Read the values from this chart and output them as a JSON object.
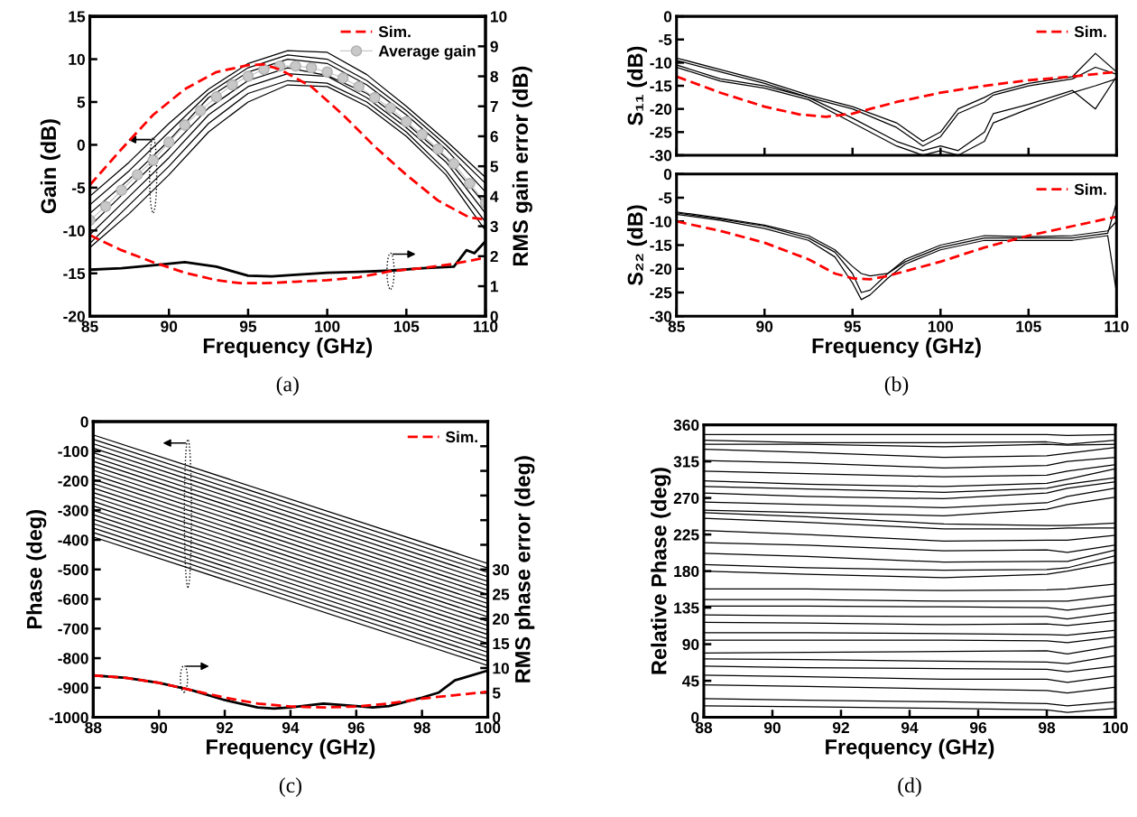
{
  "chart_data": [
    {
      "type": "line",
      "xlabel": "Frequency (GHz)",
      "ylabel": "Gain (dB)",
      "y2label": "RMS gain error (dB)",
      "annotations": [
        "(a)"
      ],
      "xlim": [
        85,
        110
      ],
      "xticks": [
        85,
        90,
        95,
        100,
        105,
        110
      ],
      "ylim": [
        -20,
        15
      ],
      "yticks": [
        -20,
        -15,
        -10,
        -5,
        0,
        5,
        10,
        15
      ],
      "y2lim": [
        0,
        10
      ],
      "y2ticks": [
        0,
        1,
        2,
        3,
        4,
        5,
        6,
        7,
        8,
        9,
        10
      ],
      "legend": "top right",
      "x": [
        85,
        87.5,
        90,
        92.5,
        95,
        97.5,
        100,
        102.5,
        105,
        107.5,
        110
      ],
      "series": [
        {
          "color": "#000000",
          "values": [
            -6,
            -2,
            2.5,
            6.5,
            9.5,
            11,
            10.8,
            8.2,
            4.5,
            0.5,
            -3.8
          ]
        },
        {
          "color": "#000000",
          "values": [
            -7,
            -3,
            1.5,
            6,
            9,
            10.5,
            10,
            7.5,
            4,
            0,
            -4.5
          ]
        },
        {
          "color": "#000000",
          "values": [
            -8,
            -4,
            0.5,
            5.5,
            8.5,
            10,
            9.5,
            7,
            3.5,
            -0.5,
            -5.5
          ]
        },
        {
          "color": "#000000",
          "values": [
            -9.5,
            -5,
            -0.5,
            4.3,
            7.5,
            9,
            8.1,
            6,
            2.5,
            -1.5,
            -7
          ]
        },
        {
          "color": "#000000",
          "values": [
            -10.5,
            -6,
            -1.5,
            3.5,
            6.8,
            8.3,
            8,
            5.5,
            2,
            -2,
            -8
          ]
        },
        {
          "color": "#000000",
          "values": [
            -11.5,
            -7,
            -2.5,
            2.5,
            6,
            7.5,
            7.2,
            5,
            1.5,
            -3,
            -9
          ]
        },
        {
          "color": "#000000",
          "values": [
            -12,
            -8,
            -3.5,
            1.5,
            5,
            7,
            6.8,
            4.5,
            1,
            -3.5,
            -10
          ]
        },
        {
          "name": "Average gain",
          "color": "#c8c8c8",
          "marker": "circle",
          "x": [
            85,
            86,
            87,
            88,
            89,
            90,
            91,
            92,
            93,
            94,
            95,
            96,
            97,
            98,
            99,
            100,
            101,
            102,
            103,
            104,
            105,
            106,
            107,
            108,
            109,
            110
          ],
          "values": [
            -8.8,
            -7.2,
            -5.3,
            -3.5,
            -1.8,
            0.3,
            2.3,
            4,
            5.6,
            7,
            8,
            8.8,
            9.2,
            9.2,
            9,
            8.5,
            7.8,
            6.8,
            5.5,
            4.3,
            2.7,
            1.2,
            -0.5,
            -2.2,
            -4.5,
            -6.8
          ]
        },
        {
          "name": "Sim.",
          "color": "#ff0000",
          "line_style": "dashed",
          "x": [
            85,
            87,
            89,
            91,
            93,
            95,
            96,
            97,
            99,
            101,
            103,
            105,
            107,
            108,
            109,
            110
          ],
          "values": [
            -4.7,
            -0.5,
            3.5,
            6.5,
            8.5,
            9.3,
            9.4,
            8.8,
            6.8,
            3.5,
            -0.2,
            -3.5,
            -6.5,
            -7.5,
            -8.5,
            -8.7
          ]
        },
        {
          "color": "#000000",
          "axis": "y2",
          "x": [
            85,
            87,
            89,
            91,
            93,
            95,
            96.5,
            98,
            100,
            102,
            104,
            106,
            108,
            108.8,
            109.3,
            110
          ],
          "values": [
            1.55,
            1.6,
            1.7,
            1.8,
            1.65,
            1.35,
            1.33,
            1.38,
            1.45,
            1.48,
            1.52,
            1.6,
            1.65,
            2.2,
            2.1,
            2.5
          ]
        },
        {
          "color": "#ff0000",
          "line_style": "dashed",
          "axis": "y2",
          "x": [
            85,
            87,
            89,
            91,
            93,
            94.5,
            96,
            98,
            100,
            102,
            104,
            106,
            108,
            110
          ],
          "values": [
            2.7,
            2.2,
            1.8,
            1.45,
            1.2,
            1.1,
            1.1,
            1.15,
            1.2,
            1.3,
            1.5,
            1.6,
            1.75,
            1.95
          ]
        }
      ]
    },
    {
      "type": "line",
      "ylabel": "S₁₁ (dB)",
      "xlim": [
        85,
        110
      ],
      "xticks": [
        85,
        90,
        95,
        100,
        105,
        110
      ],
      "ylim": [
        -30,
        0
      ],
      "yticks": [
        -30,
        -25,
        -20,
        -15,
        -10,
        -5,
        0
      ],
      "tick_labels": "y",
      "legend": "top right",
      "x": [
        85,
        87.5,
        90,
        92.5,
        95,
        97.5,
        99,
        100,
        101,
        102.5,
        103,
        105,
        107.5,
        108.8,
        110
      ],
      "series": [
        {
          "color": "#000000",
          "values": [
            -9,
            -11.5,
            -14,
            -17,
            -19.5,
            -23,
            -27,
            -25,
            -20,
            -17.5,
            -16.5,
            -14.5,
            -13,
            -8,
            -12
          ]
        },
        {
          "color": "#000000",
          "values": [
            -9.5,
            -12,
            -14.5,
            -17.5,
            -20,
            -24,
            -28,
            -26,
            -21,
            -18.5,
            -17,
            -15,
            -13.5,
            -11,
            -12.5
          ]
        },
        {
          "color": "#000000",
          "values": [
            -10.5,
            -13.5,
            -15,
            -17.5,
            -22,
            -27,
            -29,
            -28,
            -29,
            -25,
            -21,
            -19,
            -16,
            -20,
            -13
          ]
        },
        {
          "color": "#000000",
          "values": [
            -11,
            -14,
            -15.5,
            -18,
            -23,
            -28,
            -30,
            -29,
            -30,
            -27,
            -23,
            -20,
            -16.5,
            -15,
            -13.5
          ]
        },
        {
          "name": "Sim.",
          "color": "#ff0000",
          "line_style": "dashed",
          "x": [
            85,
            87.5,
            90,
            92,
            93.5,
            95,
            97.5,
            100,
            102.5,
            105,
            107.5,
            110
          ],
          "values": [
            -13,
            -16.5,
            -19.5,
            -21.2,
            -21.7,
            -21,
            -18.5,
            -16.5,
            -15,
            -13.8,
            -13,
            -12
          ]
        }
      ]
    },
    {
      "type": "line",
      "xlabel": "Frequency (GHz)",
      "ylabel": "S₂₂ (dB)",
      "annotations": [
        "(b)"
      ],
      "xlim": [
        85,
        110
      ],
      "xticks": [
        85,
        90,
        95,
        100,
        105,
        110
      ],
      "ylim": [
        -30,
        0
      ],
      "yticks": [
        -30,
        -25,
        -20,
        -15,
        -10,
        -5,
        0
      ],
      "legend": "top right",
      "x": [
        85,
        87.5,
        90,
        92.5,
        94,
        95,
        95.5,
        96,
        97,
        98,
        100,
        102.5,
        105,
        107.5,
        109.5,
        110
      ],
      "series": [
        {
          "color": "#000000",
          "values": [
            -8.2,
            -9.5,
            -11,
            -13.5,
            -16.5,
            -21,
            -25,
            -24.5,
            -21,
            -18.5,
            -15.5,
            -13.5,
            -13.5,
            -13.5,
            -12.5,
            -6
          ]
        },
        {
          "color": "#000000",
          "values": [
            -8.5,
            -9.8,
            -11.5,
            -14,
            -17.5,
            -23,
            -26.5,
            -25.5,
            -22,
            -19,
            -16,
            -14,
            -14,
            -14,
            -13,
            -25
          ]
        },
        {
          "color": "#000000",
          "values": [
            -8,
            -9.3,
            -10.8,
            -13,
            -16,
            -19.5,
            -21,
            -21.5,
            -21,
            -18,
            -15,
            -13,
            -13.2,
            -13,
            -12,
            -10
          ]
        },
        {
          "name": "Sim.",
          "color": "#ff0000",
          "line_style": "dashed",
          "x": [
            85,
            87.5,
            90,
            92.5,
            94,
            95,
            96,
            97,
            100,
            102.5,
            105,
            107.5,
            110
          ],
          "values": [
            -10,
            -12,
            -14.5,
            -18,
            -21,
            -22,
            -22.2,
            -21.5,
            -18.5,
            -15.5,
            -13,
            -11,
            -9
          ]
        }
      ]
    },
    {
      "type": "line",
      "xlabel": "Frequency (GHz)",
      "ylabel": "Phase (deg)",
      "y2label": "RMS phase error (deg)",
      "annotations": [
        "(c)"
      ],
      "xlim": [
        88,
        100
      ],
      "xticks": [
        88,
        90,
        92,
        94,
        96,
        98,
        100
      ],
      "ylim": [
        -1000,
        0
      ],
      "yticks": [
        -1000,
        -900,
        -800,
        -700,
        -600,
        -500,
        -400,
        -300,
        -200,
        -100,
        0
      ],
      "y2lim": [
        0,
        60
      ],
      "y2ticks": [
        0,
        5,
        10,
        15,
        20,
        25,
        30,
        {
          "value": 35,
          "label": null
        },
        {
          "value": 40,
          "label": null
        },
        {
          "value": 45,
          "label": null
        },
        {
          "value": 50,
          "label": null
        },
        {
          "value": 55,
          "label": null
        }
      ],
      "legend": "top right",
      "x": [
        88,
        100
      ],
      "series": [
        {
          "color": "#000000",
          "values": [
            -45,
            -480
          ]
        },
        {
          "color": "#000000",
          "values": [
            -60,
            -495
          ]
        },
        {
          "color": "#000000",
          "values": [
            -75,
            -510
          ]
        },
        {
          "color": "#000000",
          "values": [
            -90,
            -525
          ]
        },
        {
          "color": "#000000",
          "values": [
            -105,
            -540
          ]
        },
        {
          "color": "#000000",
          "values": [
            -120,
            -555
          ]
        },
        {
          "color": "#000000",
          "values": [
            -135,
            -570
          ]
        },
        {
          "color": "#000000",
          "values": [
            -150,
            -585
          ]
        },
        {
          "color": "#000000",
          "values": [
            -165,
            -600
          ]
        },
        {
          "color": "#000000",
          "values": [
            -180,
            -615
          ]
        },
        {
          "color": "#000000",
          "values": [
            -195,
            -630
          ]
        },
        {
          "color": "#000000",
          "values": [
            -210,
            -645
          ]
        },
        {
          "color": "#000000",
          "values": [
            -225,
            -660
          ]
        },
        {
          "color": "#000000",
          "values": [
            -240,
            -675
          ]
        },
        {
          "color": "#000000",
          "values": [
            -255,
            -690
          ]
        },
        {
          "color": "#000000",
          "values": [
            -270,
            -705
          ]
        },
        {
          "color": "#000000",
          "values": [
            -285,
            -720
          ]
        },
        {
          "color": "#000000",
          "values": [
            -300,
            -735
          ]
        },
        {
          "color": "#000000",
          "values": [
            -315,
            -750
          ]
        },
        {
          "color": "#000000",
          "values": [
            -330,
            -765
          ]
        },
        {
          "color": "#000000",
          "values": [
            -345,
            -780
          ]
        },
        {
          "color": "#000000",
          "values": [
            -360,
            -795
          ]
        },
        {
          "color": "#000000",
          "values": [
            -375,
            -810
          ]
        },
        {
          "color": "#000000",
          "values": [
            -390,
            -825
          ]
        },
        {
          "color": "#000000",
          "axis": "y2",
          "x": [
            88,
            89,
            90,
            91,
            92,
            93,
            93.5,
            94,
            95,
            96,
            96.5,
            97,
            98,
            98.5,
            99,
            100
          ],
          "values": [
            8.5,
            8,
            7,
            5.5,
            3.5,
            2,
            1.8,
            2,
            2.8,
            2.3,
            2,
            2.3,
            4,
            5,
            7.5,
            9.5
          ]
        },
        {
          "name": "Sim.",
          "color": "#ff0000",
          "line_style": "dashed",
          "axis": "y2",
          "x": [
            88,
            89,
            90,
            91,
            92,
            93,
            94,
            95,
            96,
            97,
            98,
            99,
            100
          ],
          "values": [
            8.5,
            8,
            7,
            5.5,
            4,
            2.8,
            2.2,
            2,
            2.2,
            2.8,
            3.8,
            4.5,
            5.2
          ]
        }
      ]
    },
    {
      "type": "line",
      "xlabel": "Frequency (GHz)",
      "ylabel": "Relative Phase (deg)",
      "annotations": [
        "(d)"
      ],
      "xlim": [
        88,
        100
      ],
      "xticks": [
        88,
        90,
        92,
        94,
        96,
        98,
        100
      ],
      "ylim": [
        0,
        360
      ],
      "yticks": [
        0,
        45,
        90,
        135,
        180,
        225,
        270,
        315,
        360
      ],
      "x": [
        88,
        91,
        95,
        98,
        98.6,
        100
      ],
      "series": [
        {
          "color": "#000000",
          "values": [
            348,
            348,
            348,
            348,
            347,
            348
          ]
        },
        {
          "color": "#000000",
          "values": [
            341,
            338,
            338,
            339,
            336,
            341
          ]
        },
        {
          "color": "#000000",
          "values": [
            336,
            336,
            333,
            336,
            335,
            336
          ]
        },
        {
          "color": "#000000",
          "values": [
            330,
            326,
            320,
            322,
            325,
            332
          ]
        },
        {
          "color": "#000000",
          "values": [
            316,
            313,
            307,
            310,
            315,
            320
          ]
        },
        {
          "color": "#000000",
          "values": [
            303,
            300,
            296,
            298,
            303,
            311
          ]
        },
        {
          "color": "#000000",
          "values": [
            291,
            287,
            284,
            288,
            293,
            306
          ]
        },
        {
          "color": "#000000",
          "values": [
            284,
            281,
            277,
            282,
            287,
            295
          ]
        },
        {
          "color": "#000000",
          "values": [
            276,
            272,
            269,
            276,
            282,
            290
          ]
        },
        {
          "color": "#000000",
          "values": [
            265,
            262,
            258,
            264,
            272,
            282
          ]
        },
        {
          "color": "#000000",
          "values": [
            255,
            252,
            248,
            256,
            262,
            271
          ]
        },
        {
          "color": "#000000",
          "values": [
            252,
            247,
            238,
            236,
            236,
            239
          ]
        },
        {
          "color": "#000000",
          "values": [
            245,
            240,
            232,
            232,
            233,
            233
          ]
        },
        {
          "color": "#000000",
          "values": [
            230,
            225,
            217,
            218,
            218,
            224
          ]
        },
        {
          "color": "#000000",
          "values": [
            215,
            212,
            205,
            206,
            203,
            212
          ]
        },
        {
          "color": "#000000",
          "values": [
            202,
            198,
            191,
            192,
            192,
            206
          ]
        },
        {
          "color": "#000000",
          "values": [
            188,
            184,
            181,
            182,
            184,
            199
          ]
        },
        {
          "color": "#000000",
          "values": [
            180,
            176,
            172,
            176,
            180,
            191
          ]
        },
        {
          "color": "#000000",
          "values": [
            158,
            158,
            156,
            157,
            158,
            164
          ]
        },
        {
          "color": "#000000",
          "values": [
            145,
            145,
            143,
            143,
            143,
            150
          ]
        },
        {
          "color": "#000000",
          "values": [
            137,
            137,
            136,
            135,
            132,
            139
          ]
        },
        {
          "color": "#000000",
          "values": [
            126,
            125,
            124,
            124,
            121,
            129
          ]
        },
        {
          "color": "#000000",
          "values": [
            117,
            116,
            114,
            115,
            113,
            119
          ]
        },
        {
          "color": "#000000",
          "values": [
            104,
            104,
            103,
            102,
            101,
            107
          ]
        },
        {
          "color": "#000000",
          "values": [
            95,
            95,
            95,
            94,
            92,
            99
          ]
        },
        {
          "color": "#000000",
          "values": [
            79,
            80,
            81,
            82,
            78,
            88
          ]
        },
        {
          "color": "#000000",
          "values": [
            72,
            71,
            69,
            68,
            66,
            76
          ]
        },
        {
          "color": "#000000",
          "values": [
            63,
            61,
            60,
            59,
            56,
            63
          ]
        },
        {
          "color": "#000000",
          "values": [
            52,
            50,
            47,
            47,
            43,
            51
          ]
        },
        {
          "color": "#000000",
          "values": [
            40,
            38,
            35,
            33,
            30,
            37
          ]
        },
        {
          "color": "#000000",
          "values": [
            23,
            21,
            19,
            17,
            14,
            19
          ]
        },
        {
          "color": "#000000",
          "values": [
            14,
            13,
            11,
            9,
            6,
            11
          ]
        }
      ]
    }
  ]
}
